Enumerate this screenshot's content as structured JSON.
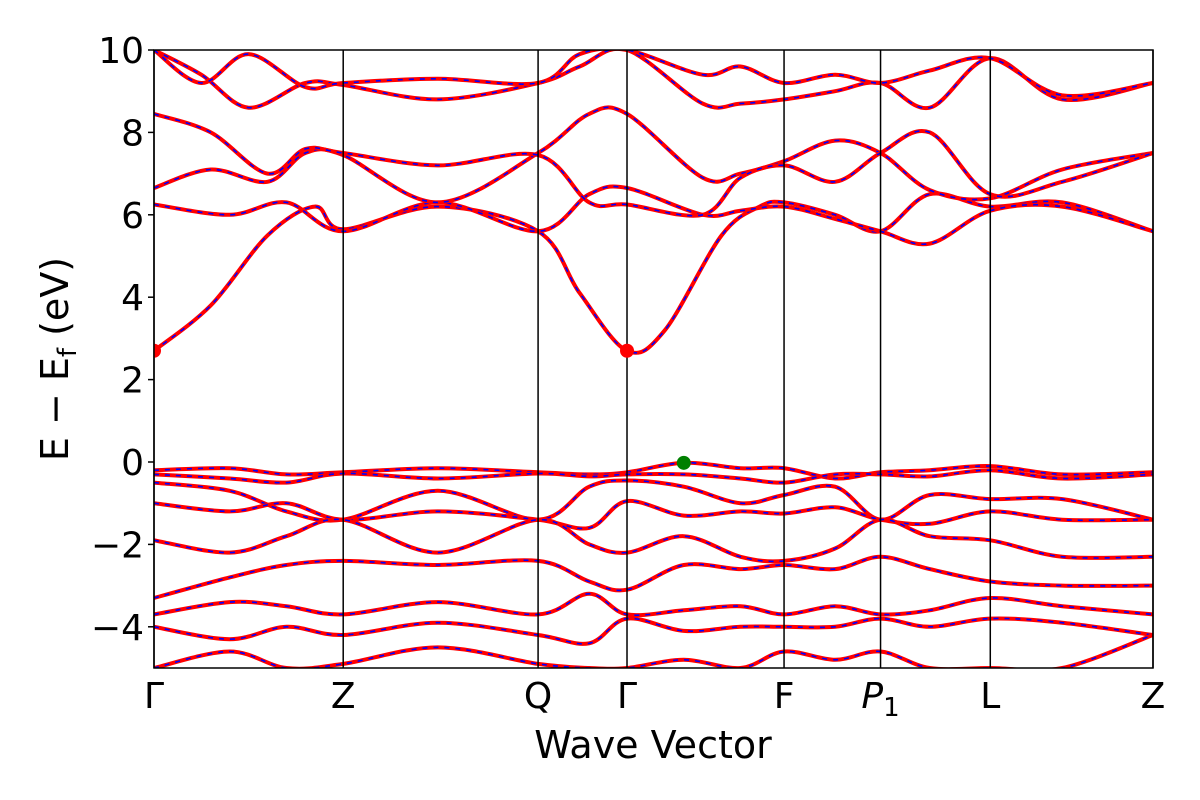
{
  "chart_data": {
    "type": "line",
    "xlabel": "Wave Vector",
    "ylabel": "E − E",
    "ylabel_sub": "f",
    "ylabel_unit": " (eV)",
    "ylim": [
      -5,
      10
    ],
    "yticks": [
      -4,
      -2,
      0,
      2,
      4,
      6,
      8,
      10
    ],
    "ytick_labels": [
      "−4",
      "−2",
      "0",
      "2",
      "4",
      "6",
      "8",
      "10"
    ],
    "high_symmetry_points": [
      {
        "label": "Γ",
        "pos": 0.0
      },
      {
        "label": "Z",
        "pos": 1.0
      },
      {
        "label": "Q",
        "pos": 2.03
      },
      {
        "label": "Γ",
        "pos": 2.5
      },
      {
        "label": "F",
        "pos": 3.33
      },
      {
        "label": "P",
        "sub": "1",
        "pos": 3.84
      },
      {
        "label": "L",
        "pos": 4.42
      },
      {
        "label": "Z",
        "pos": 5.28
      }
    ],
    "x_range": [
      0,
      5.28
    ],
    "grid": false,
    "band_colors": {
      "primary": "#ff0000",
      "overlay": "#0000ff"
    },
    "markers": [
      {
        "name": "CBM",
        "x": 0.0,
        "y": 2.7,
        "color": "#ff0000"
      },
      {
        "name": "CBM",
        "x": 2.5,
        "y": 2.7,
        "color": "#ff0000"
      },
      {
        "name": "VBM",
        "x": 2.8,
        "y": -0.02,
        "color": "#008000"
      }
    ],
    "series": [
      {
        "values": [
          [
            0,
            2.7
          ],
          [
            0.3,
            3.8
          ],
          [
            0.6,
            5.5
          ],
          [
            0.85,
            6.2
          ],
          [
            1.0,
            5.65
          ],
          [
            1.5,
            6.2
          ],
          [
            2.03,
            5.6
          ],
          [
            2.25,
            4.1
          ],
          [
            2.5,
            2.7
          ],
          [
            2.7,
            3.2
          ],
          [
            3.0,
            5.5
          ],
          [
            3.2,
            6.2
          ],
          [
            3.33,
            6.3
          ],
          [
            3.6,
            6.0
          ],
          [
            3.84,
            5.6
          ],
          [
            4.1,
            6.5
          ],
          [
            4.42,
            6.2
          ],
          [
            4.8,
            6.3
          ],
          [
            5.28,
            5.6
          ]
        ]
      },
      {
        "values": [
          [
            0,
            6.25
          ],
          [
            0.4,
            6.0
          ],
          [
            0.7,
            6.3
          ],
          [
            1.0,
            5.6
          ],
          [
            1.5,
            6.3
          ],
          [
            2.03,
            5.6
          ],
          [
            2.3,
            6.5
          ],
          [
            2.5,
            6.65
          ],
          [
            2.9,
            6.0
          ],
          [
            3.1,
            6.1
          ],
          [
            3.33,
            6.2
          ],
          [
            3.6,
            5.9
          ],
          [
            3.84,
            5.6
          ],
          [
            4.1,
            5.3
          ],
          [
            4.42,
            6.1
          ],
          [
            4.8,
            6.2
          ],
          [
            5.28,
            5.6
          ]
        ]
      },
      {
        "values": [
          [
            0,
            6.65
          ],
          [
            0.3,
            7.1
          ],
          [
            0.6,
            6.8
          ],
          [
            0.8,
            7.5
          ],
          [
            1.0,
            7.45
          ],
          [
            1.5,
            6.3
          ],
          [
            2.03,
            7.5
          ],
          [
            2.3,
            8.45
          ],
          [
            2.5,
            8.45
          ],
          [
            2.9,
            6.9
          ],
          [
            3.1,
            7.0
          ],
          [
            3.33,
            7.3
          ],
          [
            3.6,
            7.8
          ],
          [
            3.84,
            7.5
          ],
          [
            4.1,
            6.6
          ],
          [
            4.42,
            6.4
          ],
          [
            4.8,
            7.1
          ],
          [
            5.28,
            7.5
          ]
        ]
      },
      {
        "values": [
          [
            0,
            8.45
          ],
          [
            0.3,
            8.0
          ],
          [
            0.6,
            7.0
          ],
          [
            0.8,
            7.6
          ],
          [
            1.0,
            7.5
          ],
          [
            1.5,
            7.2
          ],
          [
            2.03,
            7.45
          ],
          [
            2.3,
            6.3
          ],
          [
            2.5,
            6.25
          ],
          [
            2.9,
            6.0
          ],
          [
            3.1,
            6.9
          ],
          [
            3.33,
            7.2
          ],
          [
            3.6,
            6.8
          ],
          [
            3.84,
            7.5
          ],
          [
            4.1,
            8.0
          ],
          [
            4.42,
            6.5
          ],
          [
            4.8,
            6.8
          ],
          [
            5.28,
            7.5
          ]
        ]
      },
      {
        "values": [
          [
            0,
            10.0
          ],
          [
            0.25,
            9.4
          ],
          [
            0.5,
            8.6
          ],
          [
            0.8,
            9.2
          ],
          [
            1.0,
            9.15
          ],
          [
            1.5,
            8.8
          ],
          [
            2.03,
            9.2
          ],
          [
            2.25,
            9.6
          ],
          [
            2.5,
            10.0
          ],
          [
            2.9,
            8.7
          ],
          [
            3.1,
            8.7
          ],
          [
            3.33,
            8.8
          ],
          [
            3.6,
            9.0
          ],
          [
            3.84,
            9.2
          ],
          [
            4.1,
            8.6
          ],
          [
            4.42,
            9.8
          ],
          [
            4.8,
            8.8
          ],
          [
            5.28,
            9.2
          ]
        ]
      },
      {
        "values": [
          [
            0,
            10.0
          ],
          [
            0.25,
            9.2
          ],
          [
            0.5,
            9.9
          ],
          [
            0.8,
            9.1
          ],
          [
            1.0,
            9.2
          ],
          [
            1.5,
            9.3
          ],
          [
            2.03,
            9.2
          ],
          [
            2.25,
            9.9
          ],
          [
            2.5,
            10.0
          ],
          [
            2.9,
            9.4
          ],
          [
            3.1,
            9.6
          ],
          [
            3.33,
            9.2
          ],
          [
            3.6,
            9.4
          ],
          [
            3.84,
            9.2
          ],
          [
            4.1,
            9.5
          ],
          [
            4.42,
            9.8
          ],
          [
            4.8,
            8.9
          ],
          [
            5.28,
            9.2
          ]
        ]
      },
      {
        "values": [
          [
            0,
            -0.2
          ],
          [
            0.4,
            -0.15
          ],
          [
            0.7,
            -0.3
          ],
          [
            1.0,
            -0.25
          ],
          [
            1.5,
            -0.15
          ],
          [
            2.03,
            -0.25
          ],
          [
            2.3,
            -0.3
          ],
          [
            2.5,
            -0.25
          ],
          [
            2.8,
            -0.02
          ],
          [
            3.1,
            -0.15
          ],
          [
            3.33,
            -0.15
          ],
          [
            3.6,
            -0.4
          ],
          [
            3.84,
            -0.25
          ],
          [
            4.1,
            -0.2
          ],
          [
            4.42,
            -0.1
          ],
          [
            4.8,
            -0.3
          ],
          [
            5.28,
            -0.25
          ]
        ]
      },
      {
        "values": [
          [
            0,
            -0.3
          ],
          [
            0.4,
            -0.4
          ],
          [
            0.7,
            -0.5
          ],
          [
            1.0,
            -0.28
          ],
          [
            1.5,
            -0.4
          ],
          [
            2.03,
            -0.28
          ],
          [
            2.3,
            -0.35
          ],
          [
            2.5,
            -0.3
          ],
          [
            2.8,
            -0.3
          ],
          [
            3.1,
            -0.4
          ],
          [
            3.33,
            -0.5
          ],
          [
            3.6,
            -0.3
          ],
          [
            3.84,
            -0.3
          ],
          [
            4.1,
            -0.35
          ],
          [
            4.42,
            -0.2
          ],
          [
            4.8,
            -0.4
          ],
          [
            5.28,
            -0.3
          ]
        ]
      },
      {
        "values": [
          [
            0,
            -0.5
          ],
          [
            0.4,
            -0.7
          ],
          [
            0.7,
            -1.2
          ],
          [
            1.0,
            -1.4
          ],
          [
            1.5,
            -0.7
          ],
          [
            2.03,
            -1.4
          ],
          [
            2.3,
            -0.6
          ],
          [
            2.5,
            -0.45
          ],
          [
            2.8,
            -0.6
          ],
          [
            3.1,
            -1.0
          ],
          [
            3.33,
            -0.8
          ],
          [
            3.6,
            -0.6
          ],
          [
            3.84,
            -1.4
          ],
          [
            4.1,
            -0.8
          ],
          [
            4.42,
            -0.9
          ],
          [
            4.8,
            -0.9
          ],
          [
            5.28,
            -1.4
          ]
        ]
      },
      {
        "values": [
          [
            0,
            -1.0
          ],
          [
            0.4,
            -1.2
          ],
          [
            0.7,
            -1.0
          ],
          [
            1.0,
            -1.4
          ],
          [
            1.5,
            -1.2
          ],
          [
            2.03,
            -1.4
          ],
          [
            2.3,
            -1.6
          ],
          [
            2.5,
            -0.95
          ],
          [
            2.8,
            -1.3
          ],
          [
            3.1,
            -1.2
          ],
          [
            3.33,
            -1.25
          ],
          [
            3.6,
            -1.1
          ],
          [
            3.84,
            -1.4
          ],
          [
            4.1,
            -1.5
          ],
          [
            4.42,
            -1.2
          ],
          [
            4.8,
            -1.4
          ],
          [
            5.28,
            -1.4
          ]
        ]
      },
      {
        "values": [
          [
            0,
            -1.9
          ],
          [
            0.4,
            -2.2
          ],
          [
            0.7,
            -1.8
          ],
          [
            1.0,
            -1.4
          ],
          [
            1.5,
            -2.2
          ],
          [
            2.03,
            -1.4
          ],
          [
            2.3,
            -2.0
          ],
          [
            2.5,
            -2.2
          ],
          [
            2.8,
            -1.8
          ],
          [
            3.1,
            -2.3
          ],
          [
            3.33,
            -2.4
          ],
          [
            3.6,
            -2.1
          ],
          [
            3.84,
            -1.4
          ],
          [
            4.1,
            -1.8
          ],
          [
            4.42,
            -1.9
          ],
          [
            4.8,
            -2.3
          ],
          [
            5.28,
            -2.3
          ]
        ]
      },
      {
        "values": [
          [
            0,
            -3.3
          ],
          [
            0.4,
            -2.8
          ],
          [
            0.7,
            -2.5
          ],
          [
            1.0,
            -2.4
          ],
          [
            1.5,
            -2.5
          ],
          [
            2.03,
            -2.4
          ],
          [
            2.3,
            -2.9
          ],
          [
            2.5,
            -3.1
          ],
          [
            2.8,
            -2.5
          ],
          [
            3.1,
            -2.6
          ],
          [
            3.33,
            -2.5
          ],
          [
            3.6,
            -2.6
          ],
          [
            3.84,
            -2.3
          ],
          [
            4.1,
            -2.6
          ],
          [
            4.42,
            -2.9
          ],
          [
            4.8,
            -3.0
          ],
          [
            5.28,
            -3.0
          ]
        ]
      },
      {
        "values": [
          [
            0,
            -3.7
          ],
          [
            0.4,
            -3.4
          ],
          [
            0.7,
            -3.5
          ],
          [
            1.0,
            -3.7
          ],
          [
            1.5,
            -3.4
          ],
          [
            2.03,
            -3.7
          ],
          [
            2.3,
            -3.2
          ],
          [
            2.5,
            -3.7
          ],
          [
            2.8,
            -3.6
          ],
          [
            3.1,
            -3.5
          ],
          [
            3.33,
            -3.7
          ],
          [
            3.6,
            -3.5
          ],
          [
            3.84,
            -3.7
          ],
          [
            4.1,
            -3.6
          ],
          [
            4.42,
            -3.3
          ],
          [
            4.8,
            -3.5
          ],
          [
            5.28,
            -3.7
          ]
        ]
      },
      {
        "values": [
          [
            0,
            -4.0
          ],
          [
            0.4,
            -4.3
          ],
          [
            0.7,
            -4.0
          ],
          [
            1.0,
            -4.2
          ],
          [
            1.5,
            -3.9
          ],
          [
            2.03,
            -4.2
          ],
          [
            2.3,
            -4.4
          ],
          [
            2.5,
            -3.8
          ],
          [
            2.8,
            -4.1
          ],
          [
            3.1,
            -4.0
          ],
          [
            3.33,
            -4.0
          ],
          [
            3.6,
            -4.0
          ],
          [
            3.84,
            -3.8
          ],
          [
            4.1,
            -4.0
          ],
          [
            4.42,
            -3.8
          ],
          [
            4.8,
            -3.9
          ],
          [
            5.28,
            -4.2
          ]
        ]
      },
      {
        "values": [
          [
            0,
            -5.0
          ],
          [
            0.4,
            -4.6
          ],
          [
            0.7,
            -5.0
          ],
          [
            1.0,
            -4.9
          ],
          [
            1.5,
            -4.5
          ],
          [
            2.03,
            -4.9
          ],
          [
            2.3,
            -5.0
          ],
          [
            2.5,
            -5.0
          ],
          [
            2.8,
            -4.8
          ],
          [
            3.1,
            -5.0
          ],
          [
            3.33,
            -4.6
          ],
          [
            3.6,
            -4.8
          ],
          [
            3.84,
            -4.6
          ],
          [
            4.1,
            -5.0
          ],
          [
            4.42,
            -5.0
          ],
          [
            4.8,
            -5.0
          ],
          [
            5.28,
            -4.2
          ]
        ]
      }
    ]
  }
}
